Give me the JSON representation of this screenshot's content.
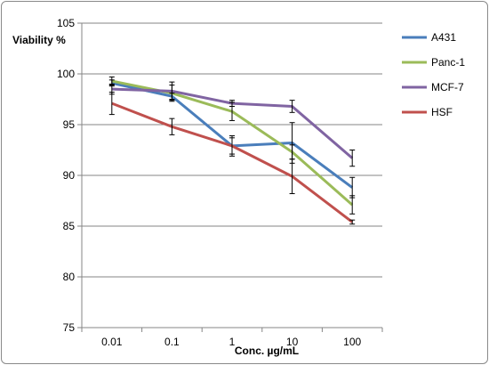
{
  "chart_data": {
    "type": "line",
    "title": "",
    "xlabel": "Conc. µg/mL",
    "ylabel": "Viability %",
    "categories": [
      "0.01",
      "0.1",
      "1",
      "10",
      "100"
    ],
    "ylim": [
      75,
      105
    ],
    "yticks": [
      75,
      80,
      85,
      90,
      95,
      100,
      105
    ],
    "grid": "horizontal",
    "legend_position": "right",
    "series": [
      {
        "name": "A431",
        "color": "#4a7ebb",
        "values": [
          99.1,
          97.8,
          92.9,
          93.2,
          88.8
        ],
        "errors": [
          0.3,
          0.3,
          1.0,
          2.0,
          1.0
        ]
      },
      {
        "name": "Panc-1",
        "color": "#9bbb59",
        "values": [
          99.3,
          98.1,
          96.3,
          92.3,
          87.1
        ],
        "errors": [
          0.4,
          0.8,
          0.9,
          0.7,
          0.9
        ]
      },
      {
        "name": "MCF-7",
        "color": "#8064a2",
        "values": [
          98.5,
          98.3,
          97.1,
          96.8,
          91.7
        ],
        "errors": [
          0.5,
          0.9,
          0.3,
          0.6,
          0.8
        ]
      },
      {
        "name": "HSF",
        "color": "#c0504d",
        "values": [
          97.1,
          94.8,
          92.9,
          89.9,
          85.4
        ],
        "errors": [
          1.1,
          0.8,
          0.8,
          1.7,
          0.2
        ]
      }
    ]
  }
}
